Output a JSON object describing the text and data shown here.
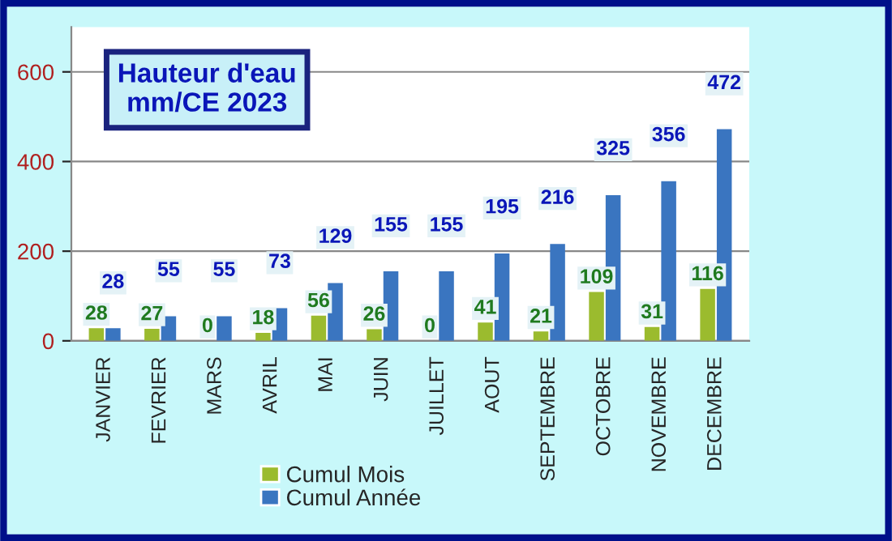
{
  "chart_data": {
    "type": "bar",
    "title": "Hauteur d'eau\nmm/CE 2023",
    "categories": [
      "JANVIER",
      "FEVRIER",
      "MARS",
      "AVRIL",
      "MAI",
      "JUIN",
      "JUILLET",
      "AOUT",
      "SEPTEMBRE",
      "OCTOBRE",
      "NOVEMBRE",
      "DECEMBRE"
    ],
    "series": [
      {
        "name": "Cumul Mois",
        "color": "#9bbb2e",
        "values": [
          28,
          27,
          0,
          18,
          56,
          26,
          0,
          41,
          21,
          109,
          31,
          116
        ]
      },
      {
        "name": "Cumul Année",
        "color": "#3a75c0",
        "values": [
          28,
          55,
          55,
          73,
          129,
          155,
          155,
          195,
          216,
          325,
          356,
          472
        ]
      }
    ],
    "ylim": [
      0,
      700
    ],
    "yticks": [
      0,
      200,
      400,
      600
    ],
    "grid": "y",
    "legend": "bottom",
    "data_labels": true
  }
}
